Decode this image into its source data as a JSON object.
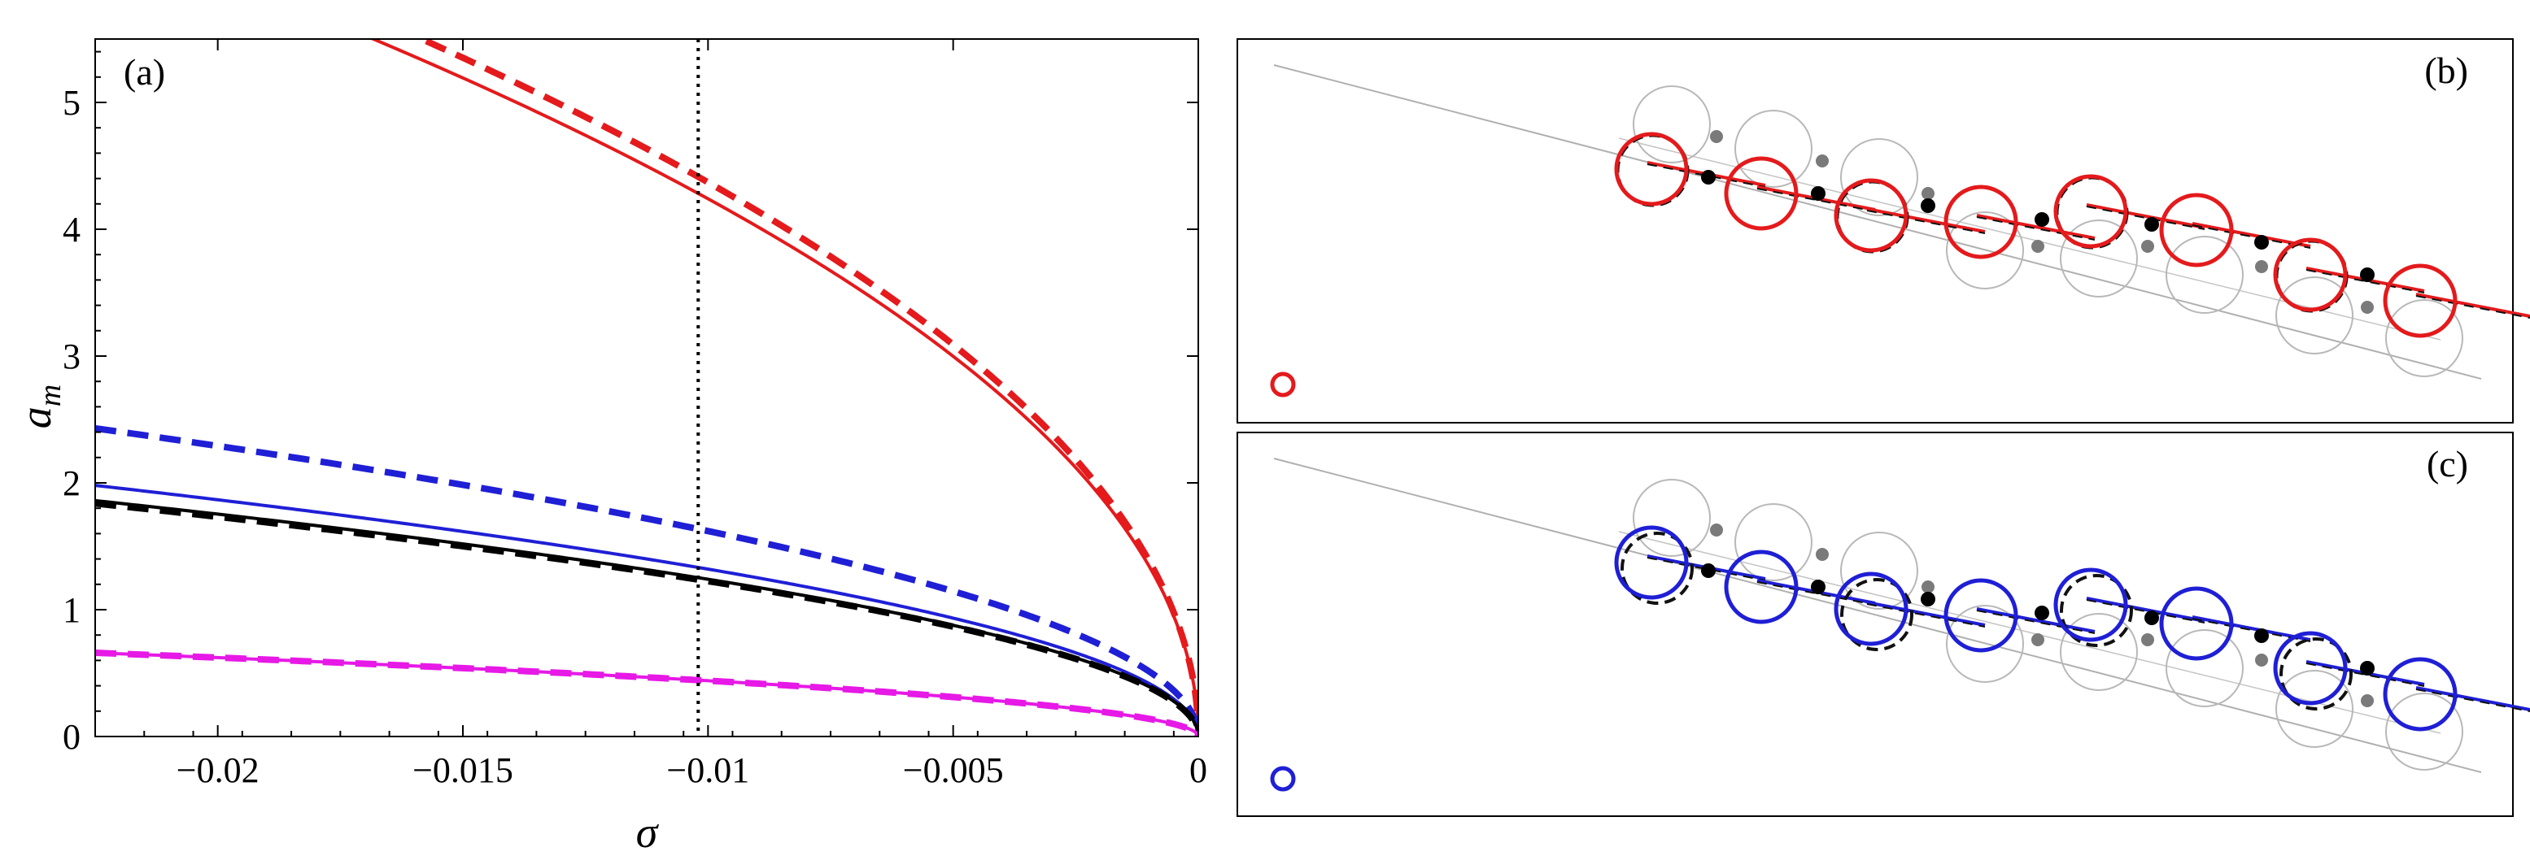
{
  "colors": {
    "red": "#e41a1c",
    "blue": "#1f1fd6",
    "black": "#000000",
    "magenta": "#e619e6",
    "gray": "#9a9a9a",
    "dot_gray": "#7a7a7a"
  },
  "chart_data": [
    {
      "id": "panel-a",
      "type": "line",
      "panel_label": "(a)",
      "xlabel": "σ",
      "ylabel": "a_m",
      "xlim": [
        -0.0225,
        0.0
      ],
      "ylim": [
        0,
        5.5
      ],
      "xticks": [
        -0.02,
        -0.015,
        -0.01,
        -0.005,
        0
      ],
      "xtick_labels": [
        "−0.02",
        "−0.015",
        "−0.01",
        "−0.005",
        "0"
      ],
      "yticks": [
        0,
        1,
        2,
        3,
        4,
        5
      ],
      "ytick_labels": [
        "0",
        "1",
        "2",
        "3",
        "4",
        "5"
      ],
      "grid": false,
      "vline": {
        "x": -0.0102,
        "style": "dotted",
        "color": "#000000"
      },
      "series": [
        {
          "color": "red",
          "style": "solid",
          "coef": 42.4
        },
        {
          "color": "red",
          "style": "dashed",
          "coef": 43.7
        },
        {
          "color": "blue",
          "style": "solid",
          "coef": 13.2
        },
        {
          "color": "blue",
          "style": "dashed",
          "coef": 16.2
        },
        {
          "color": "black",
          "style": "solid",
          "coef": 12.4
        },
        {
          "color": "black",
          "style": "dashed",
          "coef": 12.25
        },
        {
          "color": "magenta",
          "style": "solid",
          "coef": 4.4
        },
        {
          "color": "magenta",
          "style": "dashed",
          "coef": 4.4
        }
      ],
      "curve_model": "a_m = coef * sqrt(-sigma)"
    },
    {
      "id": "panel-b",
      "type": "diagram",
      "panel_label": "(b)",
      "legend_marker": {
        "color": "red",
        "shape": "circle"
      },
      "ring_color": "red"
    },
    {
      "id": "panel-c",
      "type": "diagram",
      "panel_label": "(c)",
      "legend_marker": {
        "color": "blue",
        "shape": "circle"
      },
      "ring_color": "blue"
    }
  ]
}
